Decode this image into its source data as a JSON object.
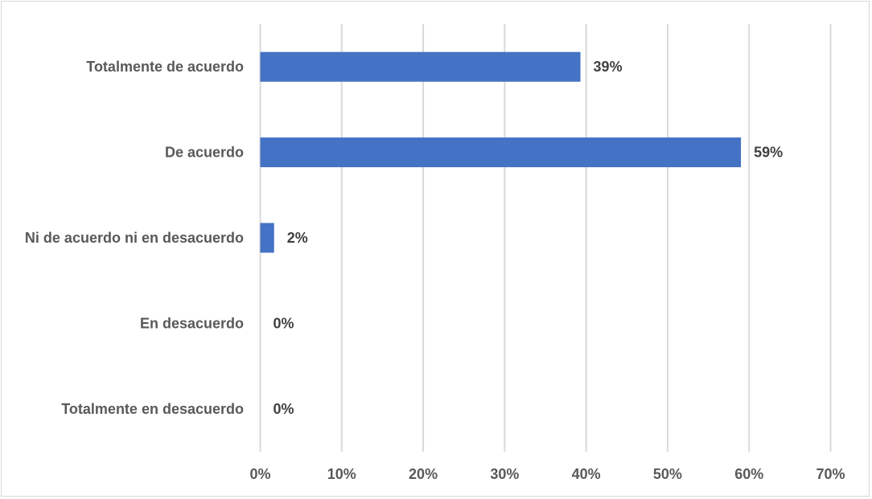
{
  "chart_data": {
    "type": "bar",
    "orientation": "horizontal",
    "title": "",
    "xlabel": "",
    "ylabel": "",
    "categories": [
      "Totalmente de acuerdo",
      "De acuerdo",
      "Ni de acuerdo ni en desacuerdo",
      "En desacuerdo",
      "Totalmente en desacuerdo"
    ],
    "values": [
      39.3,
      59.0,
      1.7,
      0,
      0
    ],
    "data_labels": [
      "39%",
      "59%",
      "2%",
      "0%",
      "0%"
    ],
    "xlim": [
      0,
      70
    ],
    "x_ticks": [
      "0%",
      "10%",
      "20%",
      "30%",
      "40%",
      "50%",
      "60%",
      "70%"
    ],
    "grid": "vertical",
    "legend": "none",
    "bar_color": "#4472c4",
    "grid_color": "#d9d9d9"
  }
}
